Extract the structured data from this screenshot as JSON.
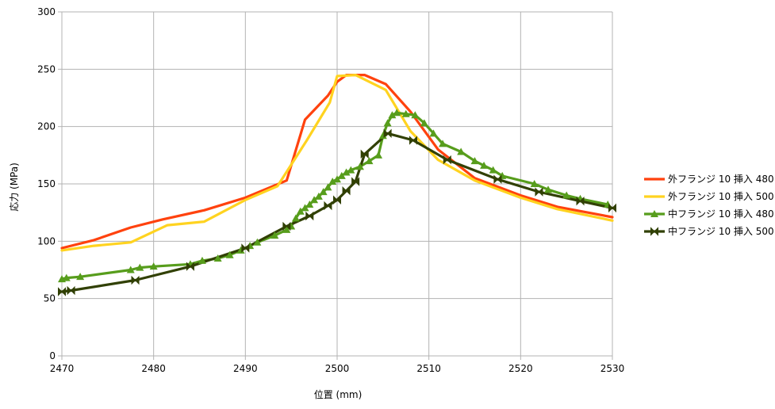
{
  "chart_data": {
    "type": "line",
    "xlabel": "位置 (mm)",
    "ylabel": "応力 (MPa)",
    "xlim": [
      2470,
      2530
    ],
    "ylim": [
      0,
      300
    ],
    "xticks": [
      2470,
      2480,
      2490,
      2500,
      2510,
      2520,
      2530
    ],
    "yticks": [
      0,
      50,
      100,
      150,
      200,
      250,
      300
    ],
    "xtick_labels": [
      "2470",
      "2480",
      "2490",
      "2500",
      "2510",
      "2520",
      "2530"
    ],
    "ytick_labels": [
      "0",
      "50",
      "100",
      "150",
      "200",
      "250",
      "300"
    ],
    "grid": true,
    "legend_position": "right",
    "series": [
      {
        "name": "外フランジ 10 挿入 480",
        "color": "#ff420e",
        "marker": "none",
        "x": [
          2470,
          2473.5,
          2477.5,
          2481,
          2485.5,
          2490,
          2494.5,
          2496.5,
          2499,
          2500,
          2501,
          2503,
          2505.3,
          2508,
          2511,
          2515,
          2520,
          2524,
          2530
        ],
        "y": [
          94,
          101,
          112,
          119,
          127,
          138,
          153,
          206,
          227,
          239,
          245,
          245,
          237,
          213,
          180,
          155,
          140,
          130,
          121
        ]
      },
      {
        "name": "外フランジ 10 挿入 500",
        "color": "#ffd320",
        "marker": "none",
        "x": [
          2470,
          2473.5,
          2477.5,
          2481.5,
          2485.5,
          2490,
          2493.5,
          2496.7,
          2499.2,
          2500,
          2502,
          2505.3,
          2508,
          2511,
          2515,
          2520,
          2524,
          2530
        ],
        "y": [
          92,
          96,
          99,
          114,
          117,
          136,
          148,
          188,
          221,
          244,
          245,
          232,
          196,
          171,
          153,
          138,
          128,
          118
        ]
      },
      {
        "name": "中フランジ 10 挿入 480",
        "color": "#579d1c",
        "marker": "triangle",
        "x": [
          2470,
          2470.5,
          2472,
          2477.5,
          2478.5,
          2480,
          2484,
          2485.3,
          2487,
          2488.3,
          2489.5,
          2490.5,
          2491.3,
          2493.2,
          2494.5,
          2495,
          2495.5,
          2496,
          2496.5,
          2497,
          2497.5,
          2498,
          2498.5,
          2499,
          2499.5,
          2500,
          2500.5,
          2501,
          2501.5,
          2502.5,
          2503.5,
          2504.5,
          2505,
          2505.5,
          2506,
          2506.5,
          2507.5,
          2508.5,
          2509.5,
          2510.5,
          2511.5,
          2513.5,
          2515,
          2516,
          2517,
          2518,
          2521.5,
          2523,
          2525,
          2526.5,
          2529.5
        ],
        "y": [
          67,
          68,
          69,
          75,
          77,
          78,
          80,
          83,
          85,
          88,
          92,
          96,
          99,
          105,
          110,
          113,
          120,
          126,
          129,
          132,
          136,
          139,
          143,
          147,
          152,
          154,
          157,
          160,
          162,
          165,
          170,
          175,
          192,
          203,
          210,
          212,
          211,
          210,
          203,
          194,
          185,
          178,
          170,
          166,
          162,
          157,
          150,
          145,
          140,
          137,
          132
        ]
      },
      {
        "name": "中フランジ 10 挿入 500",
        "color": "#314004",
        "marker": "bowtie",
        "x": [
          2470,
          2471,
          2478,
          2484,
          2490,
          2494.5,
          2497,
          2499,
          2500,
          2501,
          2502,
          2503,
          2505.5,
          2508.3,
          2512,
          2517.5,
          2522,
          2526.5,
          2530
        ],
        "y": [
          56,
          57,
          66,
          78,
          94,
          113,
          122,
          131,
          136,
          144,
          152,
          176,
          194,
          188,
          171,
          154,
          143,
          135,
          129
        ]
      }
    ]
  }
}
